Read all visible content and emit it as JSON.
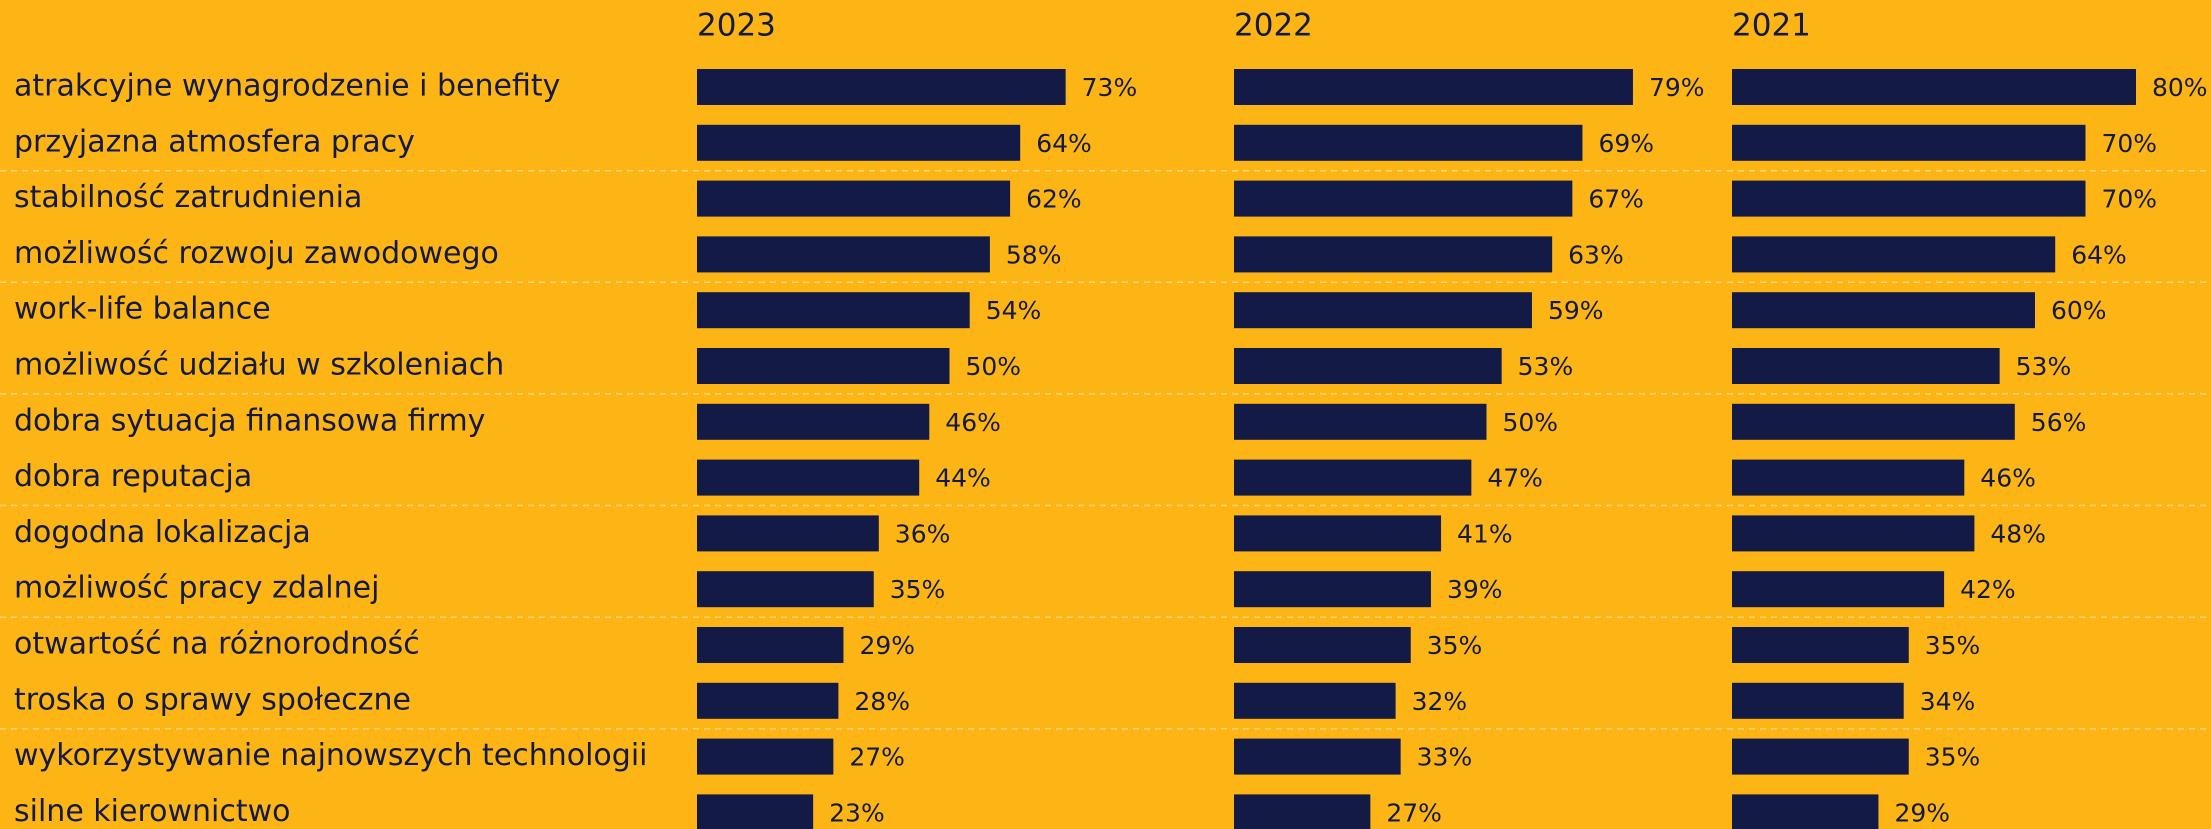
{
  "chart_data": {
    "type": "bar",
    "orientation": "horizontal",
    "categories": [
      "atrakcyjne wynagrodzenie i benefity",
      "przyjazna atmosfera pracy",
      "stabilność zatrudnienia",
      "możliwość rozwoju zawodowego",
      "work-life balance",
      "możliwość udziału w szkoleniach",
      "dobra sytuacja finansowa firmy",
      "dobra reputacja",
      "dogodna lokalizacja",
      "możliwość pracy zdalnej",
      "otwartość na różnorodność",
      "troska o sprawy społeczne",
      "wykorzystywanie najnowszych technologii",
      "silne kierownictwo"
    ],
    "series": [
      {
        "name": "2023",
        "color": "#131a45",
        "values": [
          73,
          64,
          62,
          58,
          54,
          50,
          46,
          44,
          36,
          35,
          29,
          28,
          27,
          23
        ],
        "value_labels": [
          "73%",
          "64%",
          "62%",
          "58%",
          "54%",
          "50%",
          "46%",
          "44%",
          "36%",
          "35%",
          "29%",
          "28%",
          "27%",
          "23%"
        ]
      },
      {
        "name": "2022",
        "color": "#131a45",
        "values": [
          79,
          69,
          67,
          63,
          59,
          53,
          50,
          47,
          41,
          39,
          35,
          32,
          33,
          27
        ],
        "value_labels": [
          "79%",
          "69%",
          "67%",
          "63%",
          "59%",
          "53%",
          "50%",
          "47%",
          "41%",
          "39%",
          "35%",
          "32%",
          "33%",
          "27%"
        ]
      },
      {
        "name": "2021",
        "color": "#131a45",
        "values": [
          80,
          70,
          70,
          64,
          60,
          53,
          56,
          46,
          48,
          42,
          35,
          34,
          35,
          29
        ],
        "value_labels": [
          "80%",
          "70%",
          "70%",
          "64%",
          "60%",
          "53%",
          "56%",
          "46%",
          "48%",
          "42%",
          "35%",
          "34%",
          "35%",
          "29%"
        ]
      }
    ]
  }
}
